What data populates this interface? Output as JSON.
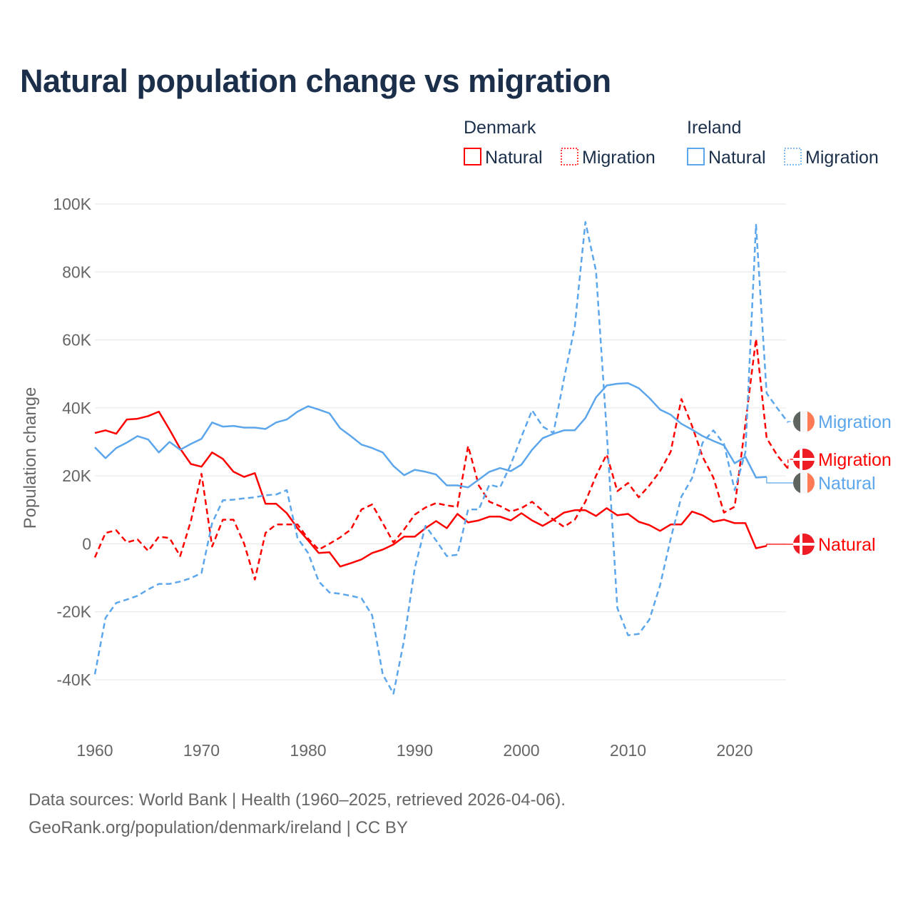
{
  "title": "Natural population change vs migration",
  "legend": {
    "groups": [
      {
        "name": "Denmark",
        "items": [
          {
            "label": "Natural",
            "style": "solid",
            "color": "#ff0000"
          },
          {
            "label": "Migration",
            "style": "dotted",
            "color": "#ff0000"
          }
        ]
      },
      {
        "name": "Ireland",
        "items": [
          {
            "label": "Natural",
            "style": "solid",
            "color": "#5ca6ec"
          },
          {
            "label": "Migration",
            "style": "dotted",
            "color": "#5ca6ec"
          }
        ]
      }
    ]
  },
  "footer": {
    "line1": "Data sources: World Bank | Health (1960–2025, retrieved 2026-04-06).",
    "line2": "GeoRank.org/population/denmark/ireland | CC BY"
  },
  "chart_data": {
    "type": "line",
    "title": "Natural population change vs migration",
    "xlabel": "",
    "ylabel": "Population change",
    "xlim": [
      1960,
      2025
    ],
    "ylim": [
      -40000,
      100000
    ],
    "x_ticks": [
      1960,
      1970,
      1980,
      1990,
      2000,
      2010,
      2020
    ],
    "x_tick_labels": [
      "1960",
      "1970",
      "1980",
      "1990",
      "2000",
      "2010",
      "2020"
    ],
    "y_ticks": [
      100000,
      80000,
      60000,
      40000,
      20000,
      0,
      -20000,
      -40000
    ],
    "y_tick_labels": [
      "100K",
      "80K",
      "60K",
      "40K",
      "20K",
      "0",
      "-20K",
      "-40K"
    ],
    "grid": true,
    "x_start": 1960,
    "series": [
      {
        "name": "Denmark Natural",
        "end_label": "Natural",
        "flag": "denmark",
        "color": "#ff0000",
        "dash": false,
        "values": [
          32600,
          33400,
          32400,
          36600,
          36800,
          37600,
          38900,
          33600,
          28000,
          23500,
          22700,
          26900,
          25000,
          21200,
          19700,
          20800,
          11800,
          11800,
          9000,
          4600,
          1000,
          -2700,
          -2500,
          -6700,
          -5700,
          -4600,
          -2700,
          -1700,
          -200,
          2100,
          2100,
          4600,
          6700,
          4600,
          8800,
          6300,
          6900,
          8000,
          8000,
          6900,
          9000,
          6900,
          5300,
          7100,
          9200,
          9900,
          9900,
          8200,
          10500,
          8400,
          8800,
          6500,
          5500,
          3800,
          5700,
          5700,
          9500,
          8400,
          6500,
          7100,
          6100,
          6100,
          -1300,
          -600,
          null,
          null
        ]
      },
      {
        "name": "Denmark Migration",
        "end_label": "Migration",
        "flag": "denmark",
        "color": "#ff0000",
        "dash": true,
        "values": [
          -4000,
          3200,
          4000,
          400,
          1300,
          -2100,
          2100,
          1700,
          -3600,
          6700,
          20600,
          -800,
          7100,
          7100,
          0,
          -10500,
          3200,
          5700,
          5700,
          5700,
          1500,
          -1700,
          0,
          1900,
          4200,
          10100,
          11600,
          6100,
          400,
          4200,
          8600,
          10700,
          12000,
          11300,
          10900,
          28800,
          17200,
          12400,
          11100,
          9500,
          10500,
          12400,
          9700,
          7100,
          5000,
          7100,
          12400,
          20000,
          26300,
          15500,
          17900,
          13700,
          17200,
          21400,
          27100,
          42600,
          34700,
          25600,
          19500,
          9200,
          10900,
          35300,
          60300,
          31100,
          26000,
          22100
        ]
      },
      {
        "name": "Ireland Natural",
        "end_label": "Natural",
        "flag": "ireland",
        "color": "#5ca6ec",
        "dash": false,
        "values": [
          28400,
          25200,
          28200,
          29800,
          31700,
          30700,
          26900,
          30000,
          27700,
          29400,
          30900,
          35700,
          34500,
          34700,
          34200,
          34200,
          33800,
          35700,
          36600,
          38900,
          40500,
          39500,
          38400,
          34000,
          31700,
          29200,
          28200,
          26900,
          22900,
          20200,
          21800,
          21200,
          20400,
          17200,
          17200,
          16600,
          18900,
          21200,
          22300,
          21400,
          23300,
          27700,
          31100,
          32400,
          33400,
          33400,
          37000,
          43100,
          46600,
          47100,
          47300,
          45800,
          42900,
          39500,
          38000,
          35300,
          33600,
          31700,
          30300,
          29000,
          23700,
          25600,
          19500,
          19700,
          null,
          null
        ]
      },
      {
        "name": "Ireland Migration",
        "end_label": "Migration",
        "flag": "ireland",
        "color": "#5ca6ec",
        "dash": true,
        "values": [
          -38400,
          -21800,
          -17400,
          -16400,
          -15300,
          -13400,
          -11800,
          -11800,
          -11100,
          -10100,
          -8600,
          6100,
          12800,
          13000,
          13400,
          13700,
          14300,
          14500,
          15800,
          1700,
          -2700,
          -11100,
          -14300,
          -14700,
          -15300,
          -16000,
          -21000,
          -38400,
          -44100,
          -28400,
          -7100,
          5300,
          1000,
          -3600,
          -3200,
          10100,
          10100,
          17400,
          16600,
          23300,
          31500,
          39300,
          34500,
          32600,
          48700,
          63900,
          94700,
          80300,
          33000,
          -18900,
          -26900,
          -26500,
          -22300,
          -12200,
          1500,
          13900,
          19300,
          29800,
          33400,
          29400,
          15800,
          26900,
          93900,
          44300,
          39900,
          35700
        ]
      }
    ]
  }
}
